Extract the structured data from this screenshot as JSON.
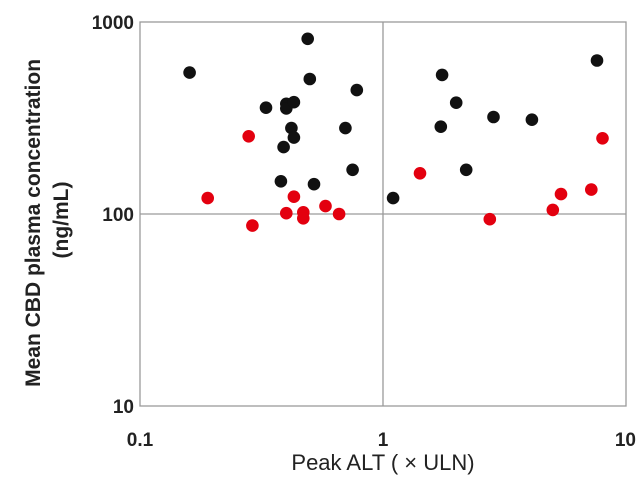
{
  "chart_data": {
    "type": "scatter",
    "title": "",
    "xlabel": "Peak ALT ( × ULN)",
    "ylabel_lines": [
      "Mean CBD plasma concentration",
      "(ng/mL)"
    ],
    "xscale": "log",
    "yscale": "log",
    "xlim": [
      0.1,
      10
    ],
    "ylim": [
      10,
      1000
    ],
    "x_ticks": [
      {
        "value": 0.1,
        "label": "0.1"
      },
      {
        "value": 1,
        "label": "1"
      },
      {
        "value": 10,
        "label": "10"
      }
    ],
    "y_ticks": [
      {
        "value": 10,
        "label": "10"
      },
      {
        "value": 100,
        "label": "100"
      },
      {
        "value": 1000,
        "label": "1000"
      }
    ],
    "reference_lines": {
      "x": 1,
      "y": 100
    },
    "legend": "none",
    "series": [
      {
        "color": "#111111",
        "points": [
          {
            "x": 0.16,
            "y": 545
          },
          {
            "x": 0.49,
            "y": 818
          },
          {
            "x": 0.5,
            "y": 505
          },
          {
            "x": 0.33,
            "y": 358
          },
          {
            "x": 0.4,
            "y": 375
          },
          {
            "x": 0.4,
            "y": 355
          },
          {
            "x": 0.43,
            "y": 382
          },
          {
            "x": 0.78,
            "y": 442
          },
          {
            "x": 0.42,
            "y": 280
          },
          {
            "x": 0.43,
            "y": 250
          },
          {
            "x": 0.39,
            "y": 223
          },
          {
            "x": 0.7,
            "y": 280
          },
          {
            "x": 0.38,
            "y": 148
          },
          {
            "x": 0.52,
            "y": 143
          },
          {
            "x": 0.75,
            "y": 170
          },
          {
            "x": 1.1,
            "y": 121
          },
          {
            "x": 1.75,
            "y": 530
          },
          {
            "x": 2.0,
            "y": 380
          },
          {
            "x": 1.73,
            "y": 285
          },
          {
            "x": 2.85,
            "y": 320
          },
          {
            "x": 4.1,
            "y": 310
          },
          {
            "x": 2.2,
            "y": 170
          },
          {
            "x": 7.6,
            "y": 630
          }
        ]
      },
      {
        "color": "#e3000f",
        "points": [
          {
            "x": 0.19,
            "y": 121
          },
          {
            "x": 0.28,
            "y": 254
          },
          {
            "x": 0.29,
            "y": 87
          },
          {
            "x": 0.4,
            "y": 101
          },
          {
            "x": 0.43,
            "y": 123
          },
          {
            "x": 0.47,
            "y": 102
          },
          {
            "x": 0.47,
            "y": 95
          },
          {
            "x": 0.58,
            "y": 110
          },
          {
            "x": 0.66,
            "y": 100
          },
          {
            "x": 1.42,
            "y": 163
          },
          {
            "x": 2.75,
            "y": 94
          },
          {
            "x": 5.0,
            "y": 105
          },
          {
            "x": 5.4,
            "y": 127
          },
          {
            "x": 7.2,
            "y": 134
          },
          {
            "x": 8.0,
            "y": 248
          }
        ]
      }
    ]
  }
}
